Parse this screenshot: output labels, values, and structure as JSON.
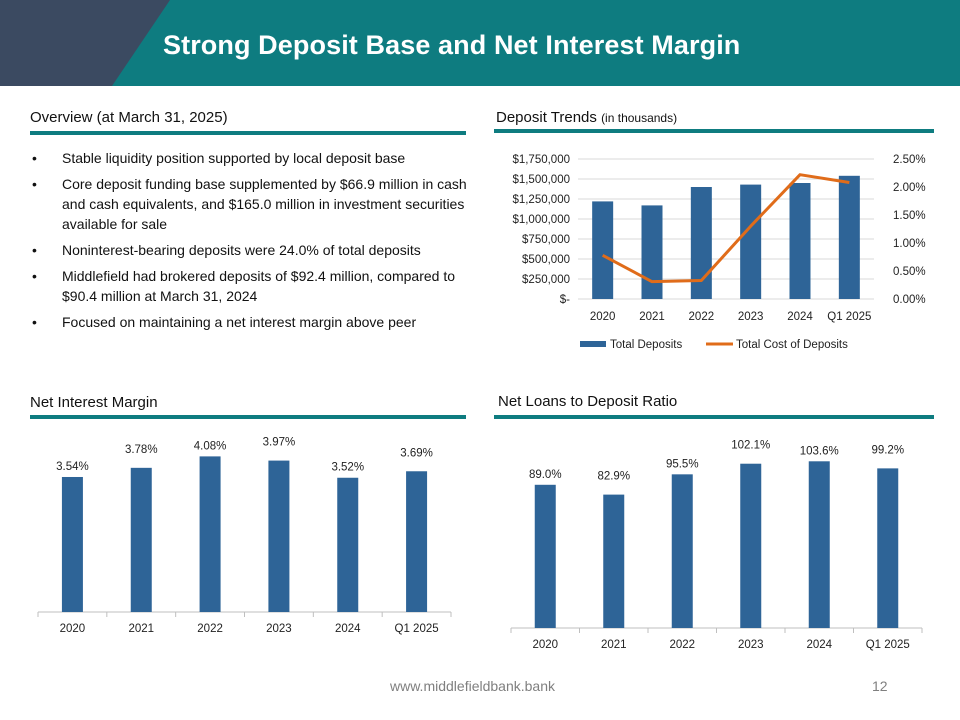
{
  "header": {
    "title": "Strong Deposit Base and Net Interest Margin"
  },
  "colors": {
    "teal": "#0e7c80",
    "slate": "#3b4a61",
    "bar": "#2e6497",
    "line": "#e06c1a"
  },
  "overview": {
    "title": "Overview (at March 31, 2025)",
    "bullets": [
      "Stable liquidity position supported by local deposit base",
      "Core deposit funding base supplemented by $66.9 million in cash and cash equivalents, and $165.0 million in investment securities available for sale",
      "Noninterest-bearing deposits were 24.0% of total deposits",
      "Middlefield had brokered deposits of $92.4 million, compared to $90.4 million at March 31, 2024",
      "Focused on maintaining a net interest margin above peer"
    ]
  },
  "deposit_section": {
    "title": "Deposit Trends",
    "subtitle": "(in thousands)"
  },
  "nim_section": {
    "title": "Net Interest Margin"
  },
  "ltd_section": {
    "title": "Net Loans to Deposit Ratio"
  },
  "chart_data": [
    {
      "id": "deposit-trends",
      "type": "bar",
      "categories": [
        "2020",
        "2021",
        "2022",
        "2023",
        "2024",
        "Q1 2025"
      ],
      "series": [
        {
          "name": "Total Deposits",
          "type": "bar",
          "axis": "left",
          "values": [
            1220000,
            1170000,
            1400000,
            1430000,
            1450000,
            1540000
          ]
        },
        {
          "name": "Total Cost of Deposits",
          "type": "line",
          "axis": "right",
          "values": [
            0.78,
            0.31,
            0.33,
            1.3,
            2.22,
            2.08
          ]
        }
      ],
      "y_left": {
        "min": 0,
        "max": 1750000,
        "ticks": [
          "$-",
          "$250,000",
          "$500,000",
          "$750,000",
          "$1,000,000",
          "$1,250,000",
          "$1,500,000",
          "$1,750,000"
        ]
      },
      "y_right": {
        "min": 0,
        "max": 2.5,
        "ticks": [
          "0.00%",
          "0.50%",
          "1.00%",
          "1.50%",
          "2.00%",
          "2.50%"
        ]
      },
      "grid": true,
      "legend": "bottom"
    },
    {
      "id": "net-interest-margin",
      "type": "bar",
      "categories": [
        "2020",
        "2021",
        "2022",
        "2023",
        "2024",
        "Q1 2025"
      ],
      "values": [
        3.54,
        3.78,
        4.08,
        3.97,
        3.52,
        3.69
      ],
      "data_labels": [
        "3.54%",
        "3.78%",
        "4.08%",
        "3.97%",
        "3.52%",
        "3.69%"
      ],
      "ylim": [
        0,
        4.3
      ],
      "grid": false
    },
    {
      "id": "net-loans-to-deposit",
      "type": "bar",
      "categories": [
        "2020",
        "2021",
        "2022",
        "2023",
        "2024",
        "Q1 2025"
      ],
      "values": [
        89.0,
        82.9,
        95.5,
        102.1,
        103.6,
        99.2
      ],
      "data_labels": [
        "89.0%",
        "82.9%",
        "95.5%",
        "102.1%",
        "103.6%",
        "99.2%"
      ],
      "ylim": [
        0,
        110
      ],
      "grid": false
    }
  ],
  "footer": {
    "url": "www.middlefieldbank.bank",
    "page": "12"
  }
}
